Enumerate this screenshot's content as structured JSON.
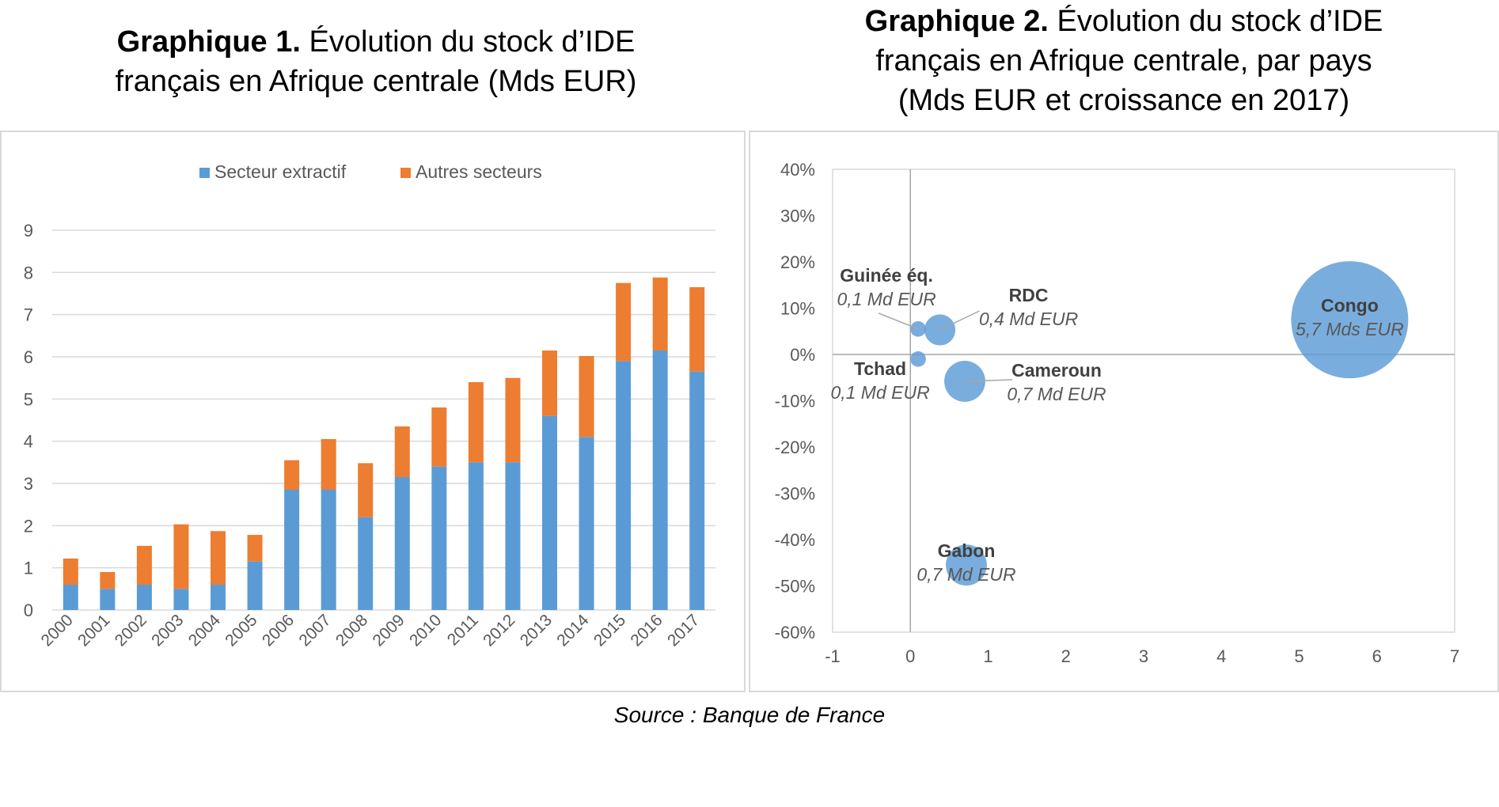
{
  "titles": {
    "chart1_bold": "Graphique 1.",
    "chart1_rest": " Évolution du stock d’IDE",
    "chart1_line2": "français en Afrique centrale (Mds EUR)",
    "chart2_bold": "Graphique 2.",
    "chart2_rest": " Évolution du stock d’IDE",
    "chart2_line2": "français en Afrique centrale, par pays",
    "chart2_line3": "(Mds EUR et croissance en 2017)"
  },
  "source": "Source : Banque de France",
  "colors": {
    "extractif": "#5b9bd5",
    "autres": "#ed7d31",
    "bubble": "#5b9bd5",
    "grid": "#d9d9d9",
    "axis_text": "#595959"
  },
  "chart_data": [
    {
      "type": "bar",
      "stacked": true,
      "categories": [
        "2000",
        "2001",
        "2002",
        "2003",
        "2004",
        "2005",
        "2006",
        "2007",
        "2008",
        "2009",
        "2010",
        "2011",
        "2012",
        "2013",
        "2014",
        "2015",
        "2016",
        "2017"
      ],
      "series": [
        {
          "name": "Secteur extractif",
          "values": [
            0.6,
            0.5,
            0.6,
            0.5,
            0.6,
            1.15,
            2.85,
            2.85,
            2.2,
            3.15,
            3.4,
            3.5,
            3.5,
            4.6,
            4.1,
            5.9,
            6.15,
            5.65
          ]
        },
        {
          "name": "Autres secteurs",
          "values": [
            0.62,
            0.4,
            0.92,
            1.53,
            1.27,
            0.63,
            0.7,
            1.2,
            1.28,
            1.2,
            1.4,
            1.9,
            2.0,
            1.55,
            1.92,
            1.85,
            1.73,
            2.0
          ]
        }
      ],
      "ylim": [
        0,
        9
      ],
      "yticks": [
        "0",
        "1",
        "2",
        "3",
        "4",
        "5",
        "6",
        "7",
        "8",
        "9"
      ],
      "grid": true,
      "legend": "top-center"
    },
    {
      "type": "scatter",
      "subtype": "bubble",
      "xlim": [
        -1,
        7
      ],
      "ylim": [
        -0.6,
        0.4
      ],
      "xticks": [
        "-1",
        "0",
        "1",
        "2",
        "3",
        "4",
        "5",
        "6",
        "7"
      ],
      "yticks": [
        "40%",
        "30%",
        "20%",
        "10%",
        "0%",
        "-10%",
        "-20%",
        "-30%",
        "-40%",
        "-50%",
        "-60%"
      ],
      "points": [
        {
          "name": "Guinée éq.",
          "label": "0,1 Md EUR",
          "x": 0.1,
          "y": 0.055,
          "size": 0.1
        },
        {
          "name": "RDC",
          "label": "0,4 Md EUR",
          "x": 0.38,
          "y": 0.053,
          "size": 0.4
        },
        {
          "name": "Tchad",
          "label": "0,1 Md EUR",
          "x": 0.1,
          "y": -0.01,
          "size": 0.1
        },
        {
          "name": "Cameroun",
          "label": "0,7 Md EUR",
          "x": 0.7,
          "y": -0.058,
          "size": 0.7
        },
        {
          "name": "Gabon",
          "label": "0,7 Md EUR",
          "x": 0.72,
          "y": -0.455,
          "size": 0.7
        },
        {
          "name": "Congo",
          "label": "5,7 Mds EUR",
          "x": 5.65,
          "y": 0.075,
          "size": 5.7
        }
      ]
    }
  ]
}
